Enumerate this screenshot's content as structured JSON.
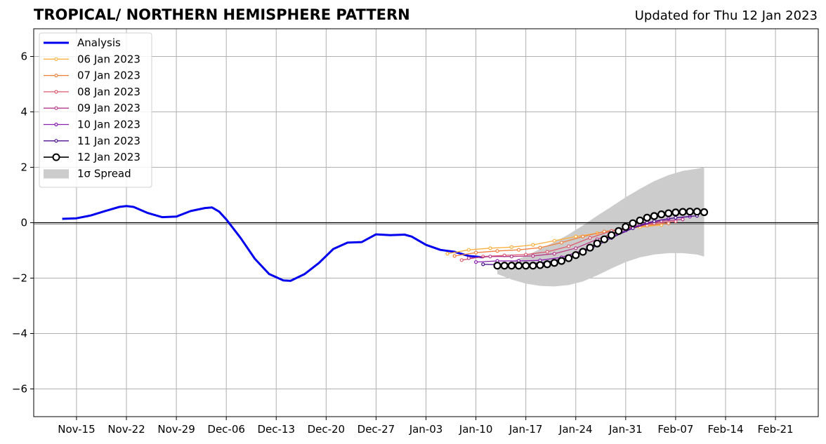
{
  "chart_data": {
    "type": "line",
    "title": "TROPICAL/ NORTHERN HEMISPHERE PATTERN",
    "subtitle": "Updated for Thu 12 Jan 2023",
    "xlabel": "",
    "ylabel": "",
    "xlim": [
      "2022-11-09",
      "2023-02-27"
    ],
    "ylim": [
      -7,
      7
    ],
    "grid": true,
    "legend_position": "upper-left",
    "x_ticks": [
      "Nov-15",
      "Nov-22",
      "Nov-29",
      "Dec-06",
      "Dec-13",
      "Dec-20",
      "Dec-27",
      "Jan-03",
      "Jan-10",
      "Jan-17",
      "Jan-24",
      "Jan-31",
      "Feb-07",
      "Feb-14",
      "Feb-21"
    ],
    "x_tick_dates": [
      "2022-11-15",
      "2022-11-22",
      "2022-11-29",
      "2022-12-06",
      "2022-12-13",
      "2022-12-20",
      "2022-12-27",
      "2023-01-03",
      "2023-01-10",
      "2023-01-17",
      "2023-01-24",
      "2023-01-31",
      "2023-02-07",
      "2023-02-14",
      "2023-02-21"
    ],
    "y_ticks": [
      6,
      4,
      2,
      0,
      -2,
      -4,
      -6
    ],
    "y_tick_labels": [
      "6",
      "4",
      "2",
      "0",
      "−2",
      "−4",
      "−6"
    ],
    "series": [
      {
        "name": "Analysis",
        "color": "#0000ee",
        "marker": "none",
        "x": [
          "2022-11-13",
          "2022-11-15",
          "2022-11-17",
          "2022-11-19",
          "2022-11-21",
          "2022-11-22",
          "2022-11-23",
          "2022-11-25",
          "2022-11-27",
          "2022-11-29",
          "2022-12-01",
          "2022-12-03",
          "2022-12-04",
          "2022-12-05",
          "2022-12-06",
          "2022-12-08",
          "2022-12-10",
          "2022-12-12",
          "2022-12-14",
          "2022-12-15",
          "2022-12-17",
          "2022-12-19",
          "2022-12-21",
          "2022-12-23",
          "2022-12-25",
          "2022-12-27",
          "2022-12-29",
          "2022-12-31",
          "2023-01-01",
          "2023-01-03",
          "2023-01-05",
          "2023-01-07",
          "2023-01-09",
          "2023-01-11"
        ],
        "values": [
          0.14,
          0.16,
          0.26,
          0.42,
          0.57,
          0.6,
          0.57,
          0.35,
          0.2,
          0.22,
          0.42,
          0.53,
          0.55,
          0.4,
          0.12,
          -0.55,
          -1.3,
          -1.85,
          -2.08,
          -2.1,
          -1.85,
          -1.45,
          -0.95,
          -0.72,
          -0.7,
          -0.42,
          -0.45,
          -0.43,
          -0.5,
          -0.8,
          -0.98,
          -1.05,
          -1.2,
          -1.25
        ]
      },
      {
        "name": "06 Jan 2023",
        "color": "#fcb040",
        "marker": "small-circle",
        "x": [
          "2023-01-06",
          "2023-01-09",
          "2023-01-12",
          "2023-01-15",
          "2023-01-18",
          "2023-01-21",
          "2023-01-24",
          "2023-01-27",
          "2023-01-30",
          "2023-02-02",
          "2023-02-05"
        ],
        "values": [
          -1.12,
          -0.98,
          -0.92,
          -0.88,
          -0.8,
          -0.65,
          -0.5,
          -0.38,
          -0.26,
          -0.16,
          -0.08
        ]
      },
      {
        "name": "07 Jan 2023",
        "color": "#f0803c",
        "marker": "small-circle",
        "x": [
          "2023-01-07",
          "2023-01-10",
          "2023-01-13",
          "2023-01-16",
          "2023-01-19",
          "2023-01-22",
          "2023-01-25",
          "2023-01-28",
          "2023-01-31",
          "2023-02-03",
          "2023-02-06"
        ],
        "values": [
          -1.2,
          -1.08,
          -1.02,
          -0.98,
          -0.9,
          -0.72,
          -0.5,
          -0.32,
          -0.2,
          -0.1,
          -0.02
        ]
      },
      {
        "name": "08 Jan 2023",
        "color": "#dd5a6e",
        "marker": "small-circle",
        "x": [
          "2023-01-08",
          "2023-01-11",
          "2023-01-14",
          "2023-01-17",
          "2023-01-20",
          "2023-01-23",
          "2023-01-26",
          "2023-01-29",
          "2023-02-01",
          "2023-02-04",
          "2023-02-07"
        ],
        "values": [
          -1.35,
          -1.22,
          -1.18,
          -1.15,
          -1.05,
          -0.85,
          -0.55,
          -0.3,
          -0.14,
          -0.02,
          0.05
        ]
      },
      {
        "name": "09 Jan 2023",
        "color": "#b83a8c",
        "marker": "small-circle",
        "x": [
          "2023-01-09",
          "2023-01-12",
          "2023-01-15",
          "2023-01-18",
          "2023-01-21",
          "2023-01-24",
          "2023-01-27",
          "2023-01-30",
          "2023-02-02",
          "2023-02-05",
          "2023-02-08"
        ],
        "values": [
          -1.28,
          -1.22,
          -1.22,
          -1.2,
          -1.12,
          -0.92,
          -0.6,
          -0.3,
          -0.08,
          0.06,
          0.12
        ]
      },
      {
        "name": "10 Jan 2023",
        "color": "#8a1fb0",
        "marker": "small-circle",
        "x": [
          "2023-01-10",
          "2023-01-13",
          "2023-01-16",
          "2023-01-19",
          "2023-01-22",
          "2023-01-25",
          "2023-01-28",
          "2023-01-31",
          "2023-02-03",
          "2023-02-06",
          "2023-02-09"
        ],
        "values": [
          -1.42,
          -1.38,
          -1.38,
          -1.36,
          -1.25,
          -1.0,
          -0.62,
          -0.28,
          0.0,
          0.15,
          0.22
        ]
      },
      {
        "name": "11 Jan 2023",
        "color": "#4b1190",
        "marker": "small-circle",
        "x": [
          "2023-01-11",
          "2023-01-14",
          "2023-01-17",
          "2023-01-20",
          "2023-01-23",
          "2023-01-26",
          "2023-01-29",
          "2023-02-01",
          "2023-02-04",
          "2023-02-07",
          "2023-02-10"
        ],
        "values": [
          -1.5,
          -1.52,
          -1.5,
          -1.42,
          -1.25,
          -0.95,
          -0.55,
          -0.2,
          0.05,
          0.18,
          0.25
        ]
      },
      {
        "name": "12 Jan 2023",
        "color": "#000000",
        "marker": "large-open-circle",
        "x": [
          "2023-01-13",
          "2023-01-14",
          "2023-01-15",
          "2023-01-16",
          "2023-01-17",
          "2023-01-18",
          "2023-01-19",
          "2023-01-20",
          "2023-01-21",
          "2023-01-22",
          "2023-01-23",
          "2023-01-24",
          "2023-01-25",
          "2023-01-26",
          "2023-01-27",
          "2023-01-28",
          "2023-01-29",
          "2023-01-30",
          "2023-01-31",
          "2023-02-01",
          "2023-02-02",
          "2023-02-03",
          "2023-02-04",
          "2023-02-05",
          "2023-02-06",
          "2023-02-07",
          "2023-02-08",
          "2023-02-09",
          "2023-02-10",
          "2023-02-11"
        ],
        "values": [
          -1.55,
          -1.55,
          -1.55,
          -1.55,
          -1.55,
          -1.55,
          -1.53,
          -1.5,
          -1.45,
          -1.38,
          -1.28,
          -1.17,
          -1.05,
          -0.9,
          -0.75,
          -0.6,
          -0.45,
          -0.3,
          -0.15,
          -0.02,
          0.08,
          0.18,
          0.24,
          0.3,
          0.34,
          0.37,
          0.39,
          0.4,
          0.4,
          0.38
        ]
      }
    ],
    "spread": {
      "name": "1σ Spread",
      "color": "#cccccc",
      "x": [
        "2023-01-13",
        "2023-01-15",
        "2023-01-17",
        "2023-01-19",
        "2023-01-21",
        "2023-01-23",
        "2023-01-25",
        "2023-01-27",
        "2023-01-29",
        "2023-01-31",
        "2023-02-02",
        "2023-02-04",
        "2023-02-06",
        "2023-02-08",
        "2023-02-10",
        "2023-02-11"
      ],
      "upper": [
        -1.55,
        -1.4,
        -1.2,
        -0.95,
        -0.7,
        -0.42,
        -0.1,
        0.25,
        0.58,
        0.92,
        1.22,
        1.5,
        1.72,
        1.87,
        1.95,
        2.0
      ],
      "lower": [
        -1.85,
        -2.05,
        -2.2,
        -2.28,
        -2.3,
        -2.25,
        -2.12,
        -1.9,
        -1.65,
        -1.42,
        -1.25,
        -1.15,
        -1.1,
        -1.1,
        -1.15,
        -1.22
      ]
    }
  }
}
